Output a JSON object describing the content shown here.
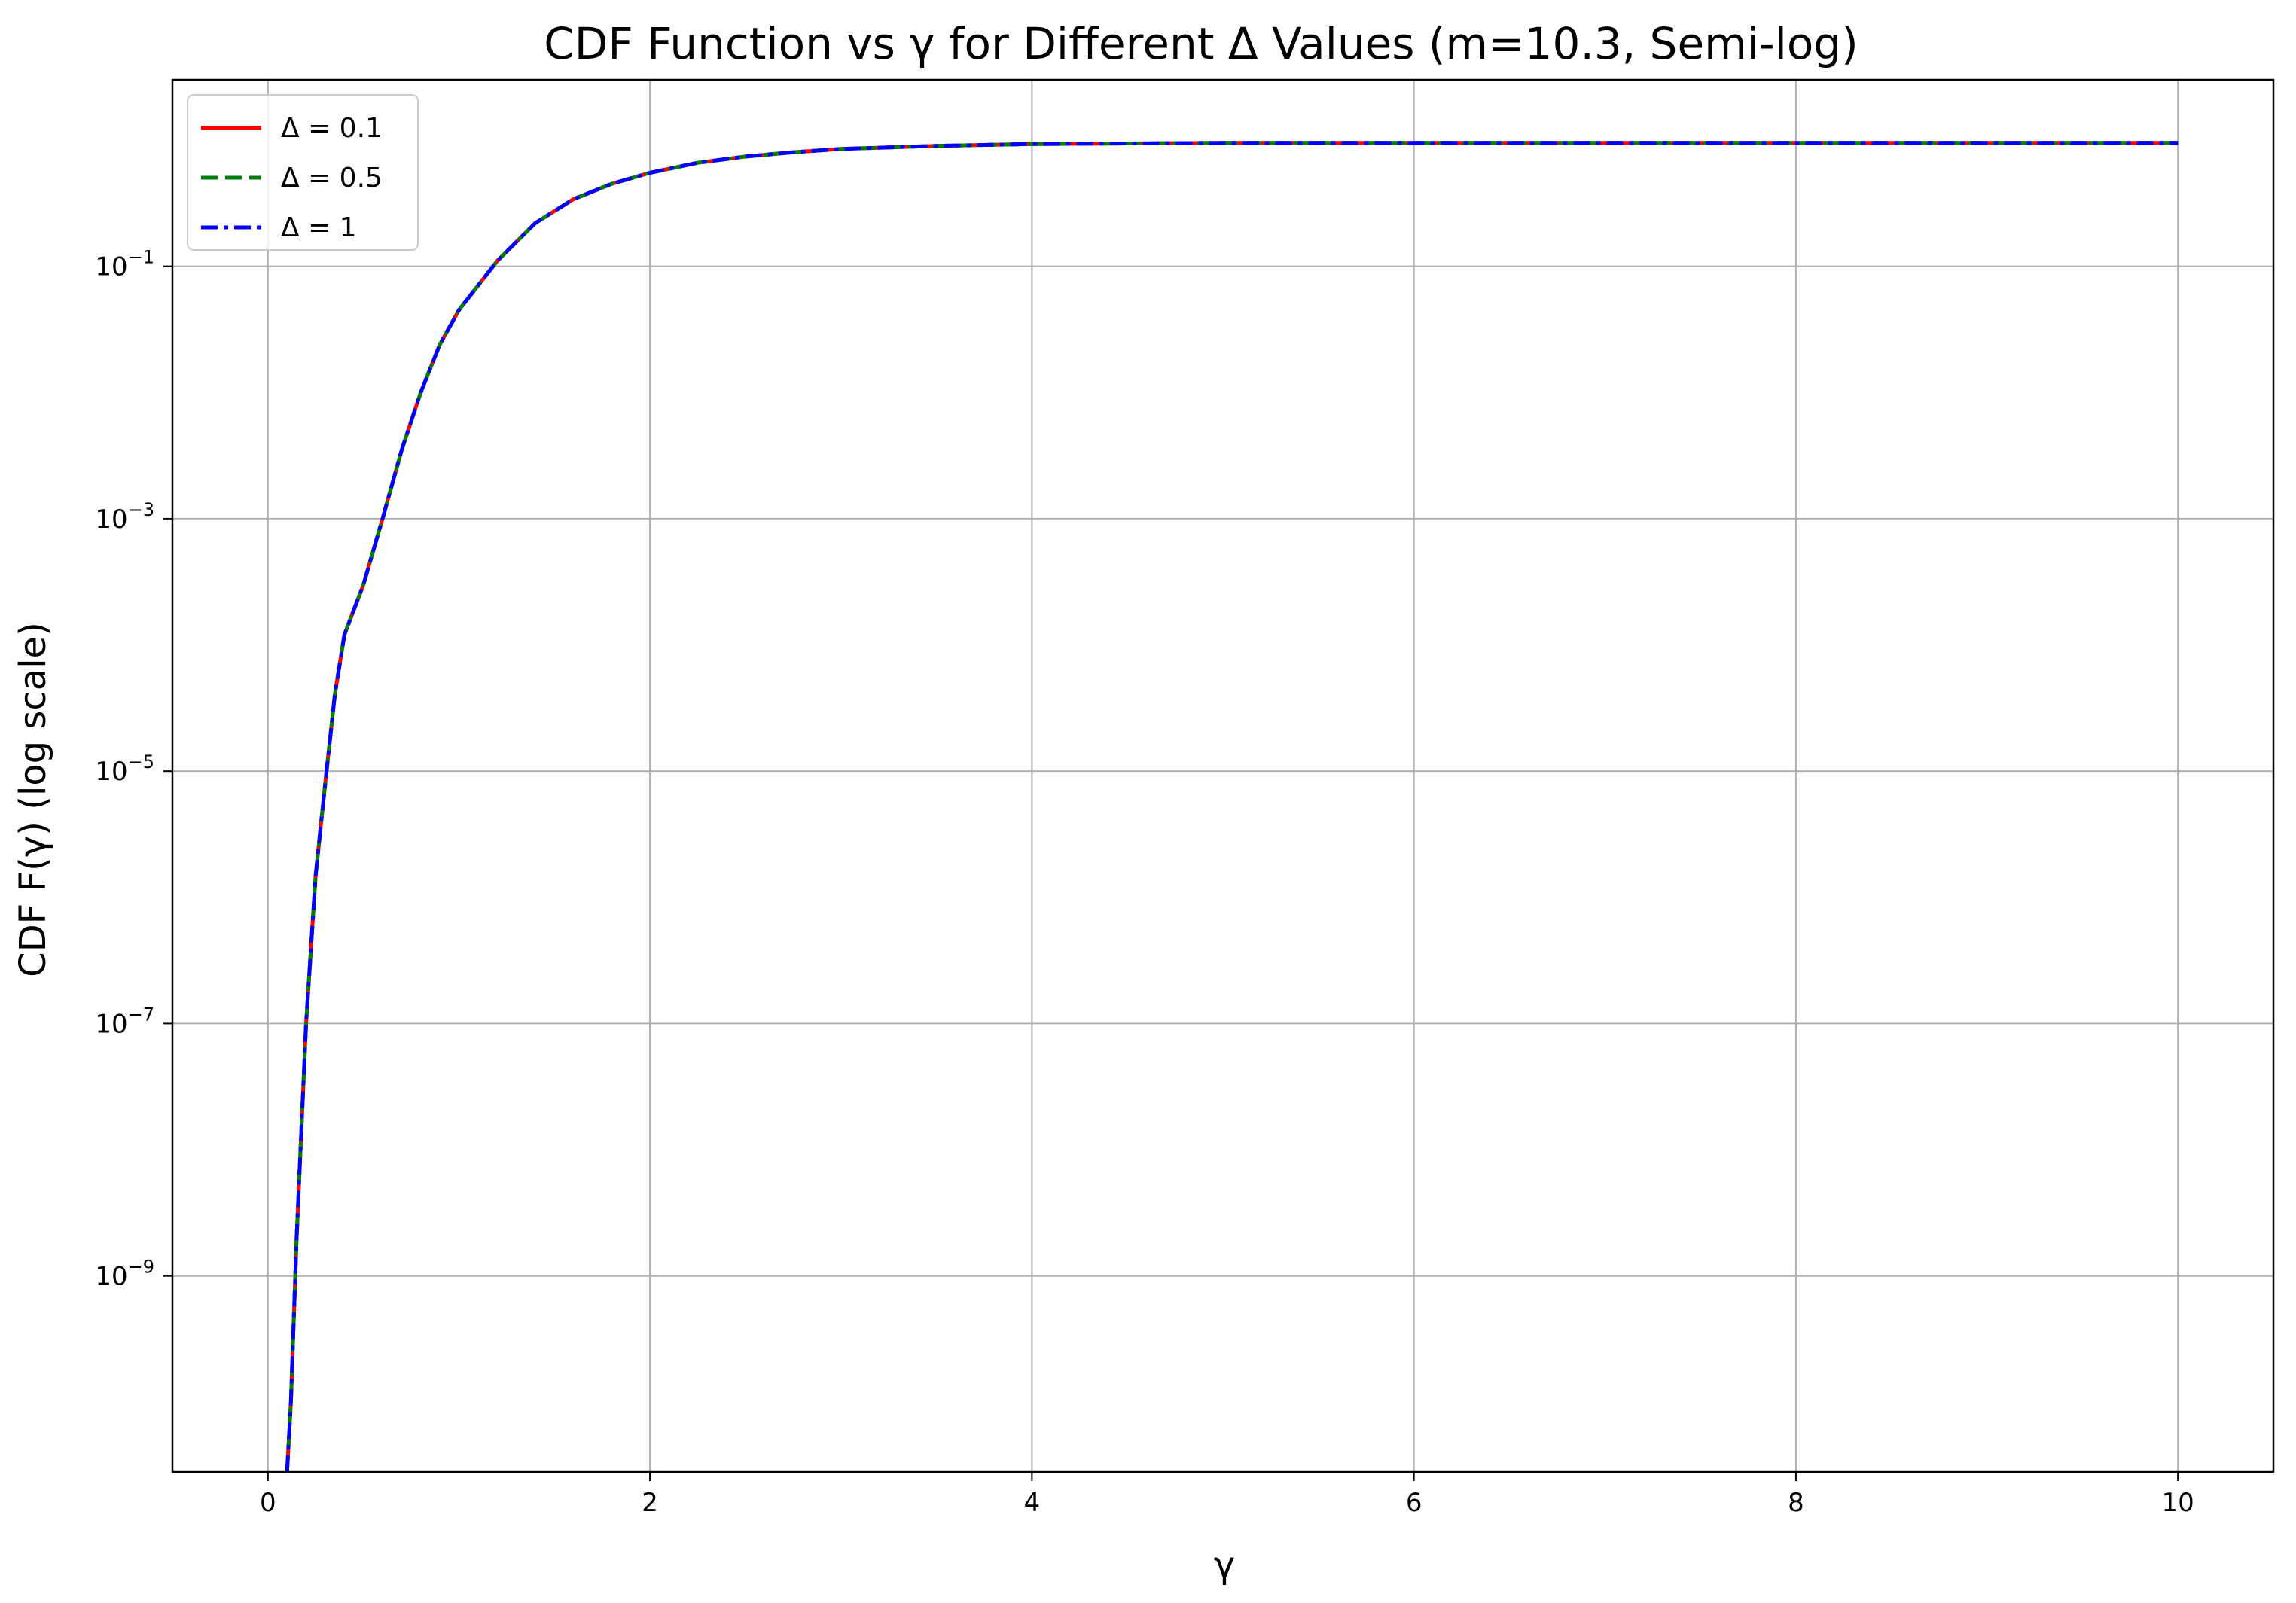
{
  "chart_data": {
    "type": "line",
    "title": "CDF Function vs γ for Different Δ Values (m=10.3, Semi-log)",
    "xlabel": "γ",
    "ylabel": "CDF F(γ) (log scale)",
    "xlim": [
      -0.5,
      10.5
    ],
    "ylim": [
      2.8e-11,
      3
    ],
    "yscale": "log",
    "grid": true,
    "legend_position": "top-left",
    "x_ticks": [
      {
        "value": 0,
        "label": "0"
      },
      {
        "value": 2,
        "label": "2"
      },
      {
        "value": 4,
        "label": "4"
      },
      {
        "value": 6,
        "label": "6"
      },
      {
        "value": 8,
        "label": "8"
      },
      {
        "value": 10,
        "label": "10"
      }
    ],
    "y_ticks": [
      {
        "value": 0.1,
        "base": "10",
        "exp": "−1"
      },
      {
        "value": 0.001,
        "base": "10",
        "exp": "−3"
      },
      {
        "value": 1e-05,
        "base": "10",
        "exp": "−5"
      },
      {
        "value": 1e-07,
        "base": "10",
        "exp": "−7"
      },
      {
        "value": 1e-09,
        "base": "10",
        "exp": "−9"
      }
    ],
    "x": [
      0.1,
      0.12,
      0.15,
      0.2,
      0.25,
      0.3,
      0.35,
      0.4,
      0.5,
      0.6,
      0.7,
      0.8,
      0.9,
      1.0,
      1.2,
      1.4,
      1.6,
      1.8,
      2.0,
      2.25,
      2.5,
      2.75,
      3.0,
      3.5,
      4.0,
      5.0,
      6.0,
      7.0,
      8.0,
      9.0,
      10.0
    ],
    "series": [
      {
        "name": "Δ = 0.1",
        "color": "#ff0000",
        "dash": "solid",
        "values": [
          2.8e-11,
          1e-10,
          2e-09,
          1e-07,
          1.5e-06,
          8e-06,
          4e-05,
          0.00012,
          0.0003,
          0.001,
          0.0035,
          0.01,
          0.024,
          0.045,
          0.11,
          0.22,
          0.34,
          0.45,
          0.55,
          0.66,
          0.74,
          0.8,
          0.85,
          0.9,
          0.93,
          0.95,
          0.95,
          0.95,
          0.95,
          0.95,
          0.95
        ]
      },
      {
        "name": "Δ = 0.5",
        "color": "#008000",
        "dash": "dashed",
        "values": [
          2.8e-11,
          1e-10,
          2e-09,
          1e-07,
          1.5e-06,
          8e-06,
          4e-05,
          0.00012,
          0.0003,
          0.001,
          0.0035,
          0.01,
          0.024,
          0.045,
          0.11,
          0.22,
          0.34,
          0.45,
          0.55,
          0.66,
          0.74,
          0.8,
          0.85,
          0.9,
          0.93,
          0.95,
          0.95,
          0.95,
          0.95,
          0.95,
          0.95
        ]
      },
      {
        "name": "Δ = 1",
        "color": "#0000ff",
        "dash": "dashdot",
        "values": [
          2.8e-11,
          1e-10,
          2e-09,
          1e-07,
          1.5e-06,
          8e-06,
          4e-05,
          0.00012,
          0.0003,
          0.001,
          0.0035,
          0.01,
          0.024,
          0.045,
          0.11,
          0.22,
          0.34,
          0.45,
          0.55,
          0.66,
          0.74,
          0.8,
          0.85,
          0.9,
          0.93,
          0.95,
          0.95,
          0.95,
          0.95,
          0.95,
          0.95
        ]
      }
    ]
  }
}
